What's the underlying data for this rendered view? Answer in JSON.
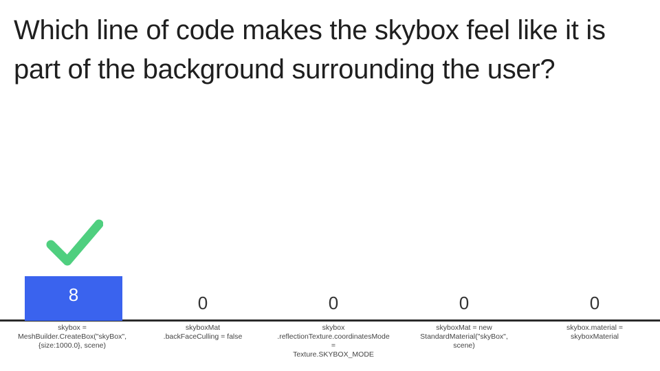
{
  "question": "Which line of code makes the skybox feel like it is part of the background surrounding the user?",
  "colors": {
    "bar": "#3a63ee",
    "check": "#4fcf7f",
    "text": "#222222"
  },
  "chart_data": {
    "type": "bar",
    "categories": [
      "skybox =\nMeshBuilder.CreateBox(\"skyBox\",\n{size:1000.0}, scene)",
      "skyboxMat\n.backFaceCulling = false",
      "skybox\n.reflectionTexture.coordinatesMode\n=\nTexture.SKYBOX_MODE",
      "skyboxMat = new\nStandardMaterial(\"skyBox\",\nscene)",
      "skybox.material =\nskyboxMaterial"
    ],
    "values": [
      8,
      0,
      0,
      0,
      0
    ],
    "value_labels": [
      "8",
      "0",
      "0",
      "0",
      "0"
    ],
    "correct_index": 0,
    "ylim": [
      0,
      8
    ],
    "grid": false
  }
}
